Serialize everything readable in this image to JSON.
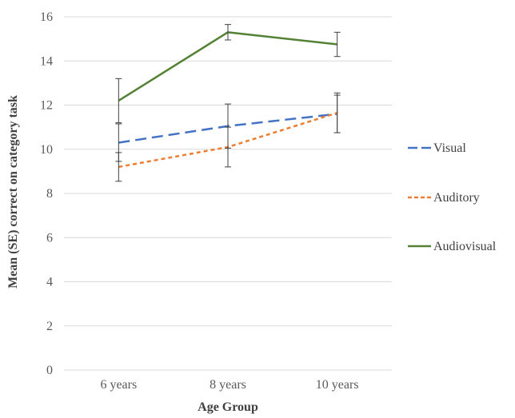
{
  "chart_data": {
    "type": "line",
    "title": "",
    "xlabel": "Age Group",
    "ylabel": "Mean (SE) correct on category task",
    "categories": [
      "6 years",
      "8 years",
      "10 years"
    ],
    "ylim": [
      0,
      16
    ],
    "yticks": [
      0,
      2,
      4,
      6,
      8,
      10,
      12,
      14,
      16
    ],
    "grid": true,
    "legend_position": "right",
    "series": [
      {
        "name": "Visual",
        "values": [
          10.3,
          11.05,
          11.6
        ],
        "errors": [
          0.85,
          1.0,
          0.85
        ],
        "color": "#4472C4",
        "dash": "long-dash"
      },
      {
        "name": "Auditory",
        "values": [
          9.2,
          10.1,
          11.65
        ],
        "errors": [
          0.65,
          0.9,
          0.9
        ],
        "color": "#ED7D31",
        "dash": "short-dash"
      },
      {
        "name": "Audiovisual",
        "values": [
          12.2,
          15.3,
          14.75
        ],
        "errors": [
          1.0,
          0.35,
          0.55
        ],
        "color": "#548235",
        "dash": "solid"
      }
    ]
  }
}
